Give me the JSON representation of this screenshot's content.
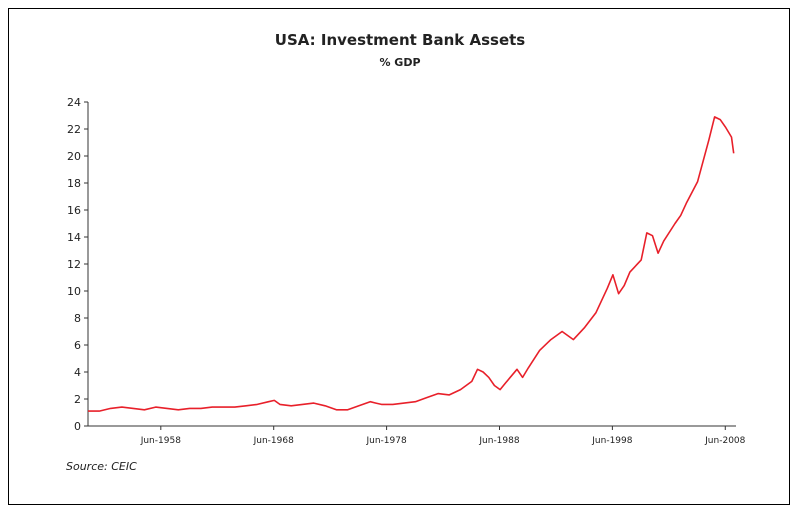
{
  "chart_data": {
    "type": "line",
    "title": "USA: Investment Bank Assets",
    "subtitle": "% GDP",
    "source": "Source: CEIC",
    "xlabel": "",
    "ylabel": "",
    "ylim": [
      0,
      24
    ],
    "xlim": [
      1952.0,
      2009.4
    ],
    "y_ticks": [
      "0",
      "2",
      "4",
      "6",
      "8",
      "10",
      "12",
      "14",
      "16",
      "18",
      "20",
      "22",
      "24"
    ],
    "x_ticks": [
      {
        "label": "Jun-1958",
        "value": 1958.45
      },
      {
        "label": "Jun-1968",
        "value": 1968.45
      },
      {
        "label": "Jun-1978",
        "value": 1978.45
      },
      {
        "label": "Jun-1988",
        "value": 1988.45
      },
      {
        "label": "Jun-1998",
        "value": 1998.45
      },
      {
        "label": "Jun-2008",
        "value": 2008.45
      }
    ],
    "grid": false,
    "legend": "none",
    "line_color": "#e8202a",
    "series": [
      {
        "x": [
          1952.0,
          1953.0,
          1954.0,
          1955.0,
          1956.0,
          1957.0,
          1958.0,
          1959.0,
          1960.0,
          1961.0,
          1962.0,
          1963.0,
          1964.0,
          1965.0,
          1966.0,
          1967.0,
          1968.0,
          1968.5,
          1969.0,
          1970.0,
          1971.0,
          1972.0,
          1973.0,
          1974.0,
          1975.0,
          1976.0,
          1977.0,
          1977.5,
          1978.0,
          1979.0,
          1980.0,
          1981.0,
          1982.0,
          1983.0,
          1984.0,
          1985.0,
          1986.0,
          1986.5,
          1987.0,
          1987.5,
          1988.0,
          1988.5,
          1989.0,
          1990.0,
          1990.5,
          1991.0,
          1992.0,
          1993.0,
          1994.0,
          1995.0,
          1996.0,
          1997.0,
          1998.0,
          1998.5,
          1999.0,
          1999.5,
          2000.0,
          2001.0,
          2001.5,
          2002.0,
          2002.5,
          2003.0,
          2004.0,
          2004.5,
          2005.0,
          2006.0,
          2007.0,
          2007.5,
          2008.0,
          2008.5,
          2009.0,
          2009.2
        ],
        "values": [
          1.1,
          1.1,
          1.3,
          1.4,
          1.3,
          1.2,
          1.4,
          1.3,
          1.2,
          1.3,
          1.3,
          1.4,
          1.4,
          1.4,
          1.5,
          1.6,
          1.8,
          1.9,
          1.6,
          1.5,
          1.6,
          1.7,
          1.5,
          1.2,
          1.2,
          1.5,
          1.8,
          1.7,
          1.6,
          1.6,
          1.7,
          1.8,
          2.1,
          2.4,
          2.3,
          2.7,
          3.3,
          4.2,
          4.0,
          3.6,
          3.0,
          2.7,
          3.2,
          4.2,
          3.6,
          4.3,
          5.6,
          6.4,
          7.0,
          6.4,
          7.3,
          8.4,
          10.2,
          11.2,
          9.8,
          10.4,
          11.4,
          12.3,
          14.3,
          14.1,
          12.8,
          13.7,
          15.0,
          15.6,
          16.5,
          18.1,
          21.2,
          22.9,
          22.7,
          22.1,
          21.4,
          20.2
        ]
      }
    ]
  }
}
